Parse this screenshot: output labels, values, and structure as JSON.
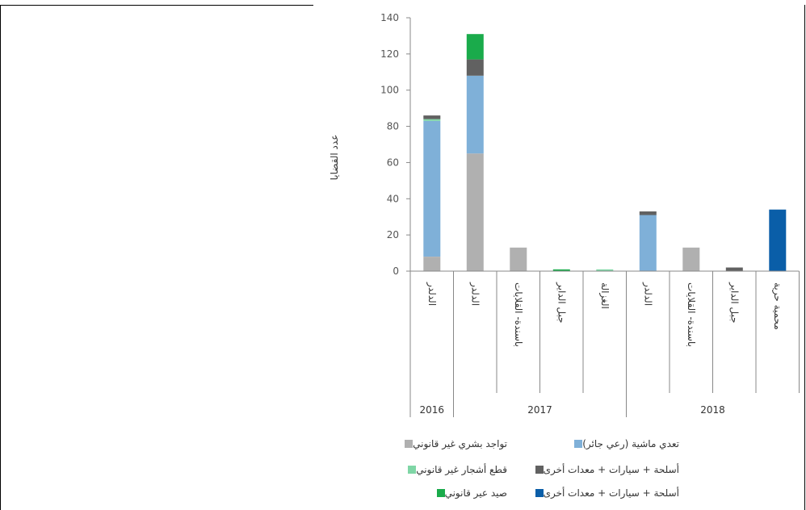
{
  "chart_data": {
    "type": "bar",
    "stacked": true,
    "ylabel": "عدد القضايا",
    "ylim": [
      0,
      140
    ],
    "yticks": [
      0,
      20,
      40,
      60,
      80,
      100,
      120,
      140
    ],
    "categories": [
      "الدلدر",
      "الدلدر",
      "باسندة- القلايات",
      "جبل الداير",
      "الغزالة",
      "الدلدر",
      "باسندة- القلايات",
      "جبل الداير",
      "محمية حرية"
    ],
    "groups": [
      {
        "label": "2016",
        "span": 1
      },
      {
        "label": "2017",
        "span": 4
      },
      {
        "label": "2018",
        "span": 4
      }
    ],
    "series": [
      {
        "name": "تواجد بشري غير قانوني",
        "color": "#b0b0b0",
        "values": [
          8,
          65,
          13,
          0,
          0,
          0,
          13,
          0,
          0
        ]
      },
      {
        "name": "تعدي ماشية (رعي جائر)",
        "color": "#7fb0d8",
        "values": [
          75,
          43,
          0,
          0,
          0,
          31,
          0,
          0,
          0
        ]
      },
      {
        "name": "قطع أشجار غير قانوني",
        "color": "#7fd6a6",
        "values": [
          1,
          0,
          0,
          0,
          1,
          0,
          0,
          0,
          0
        ]
      },
      {
        "name": "أسلحة + سيارات + معدات أخرى",
        "color": "#616161",
        "values": [
          2,
          9,
          0,
          0,
          0,
          2,
          0,
          2,
          0
        ]
      },
      {
        "name": "صيد غير قانوني",
        "color": "#1aab4b",
        "values": [
          0,
          14,
          0,
          1,
          0,
          0,
          0,
          0,
          0
        ]
      },
      {
        "name": "أسلحة + سيارات + معدات أخرى",
        "color": "#0a5ea8",
        "values": [
          0,
          0,
          0,
          0,
          0,
          0,
          0,
          0,
          34
        ]
      }
    ],
    "legend": [
      [
        "تعدي ماشية (رعي جائر)",
        "تواجد بشري غير قانوني"
      ],
      [
        "أسلحة + سيارات + معدات أخرى",
        "قطع أشجار غير قانوني"
      ],
      [
        "أسلحة + سيارات + معدات أخرى",
        "صيد عير قانوني"
      ]
    ]
  }
}
